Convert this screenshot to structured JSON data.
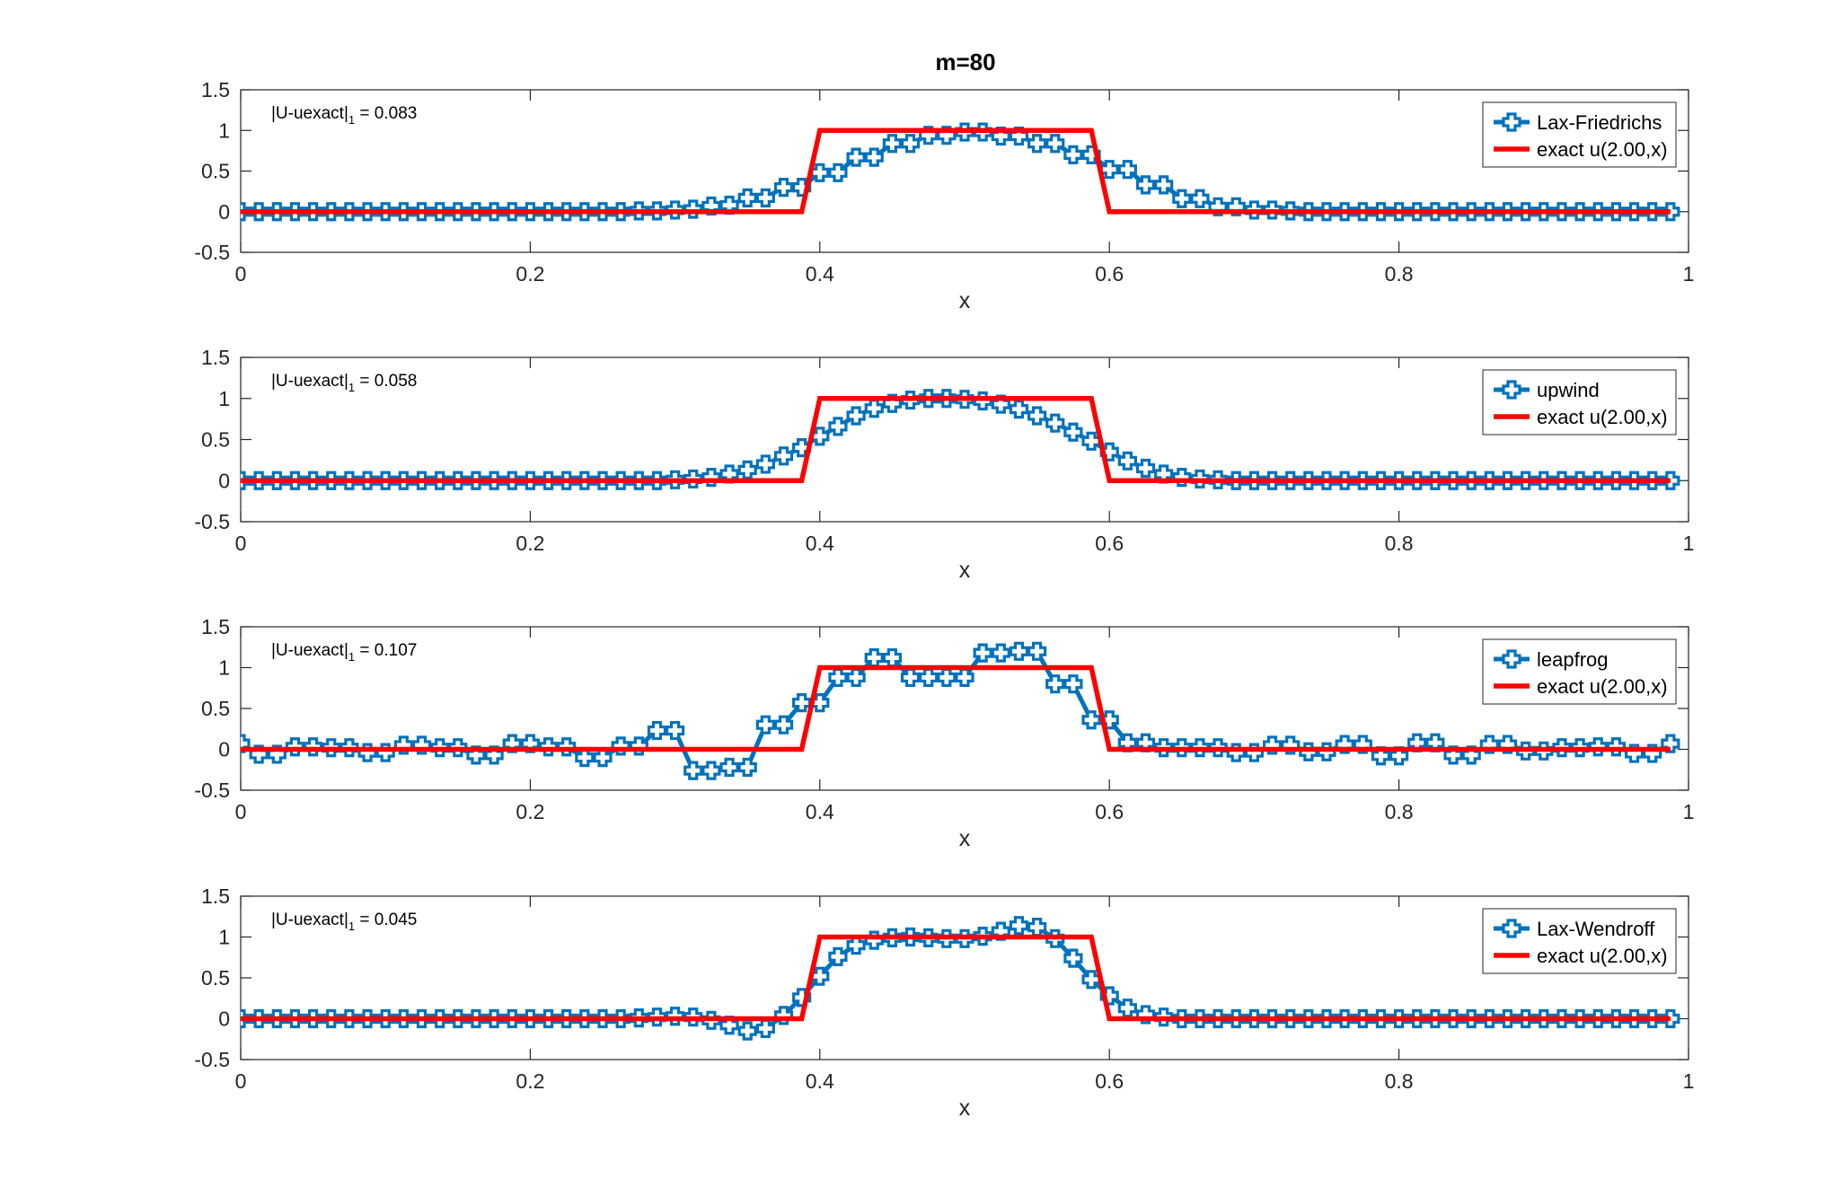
{
  "figure_title": "m=80",
  "colors": {
    "numerical": "#0072BD",
    "exact": "#FF0000",
    "axis": "#262626"
  },
  "chart_data": [
    {
      "type": "line",
      "title": "m=80",
      "xlabel": "x",
      "ylabel": "",
      "xlim": [
        0,
        1
      ],
      "ylim": [
        -0.5,
        1.5
      ],
      "xticks": [
        "0",
        "0.2",
        "0.4",
        "0.6",
        "0.8",
        "1"
      ],
      "yticks": [
        "-0.5",
        "0",
        "0.5",
        "1",
        "1.5"
      ],
      "annotation": {
        "main": "|U-uexact|",
        "sub": "1",
        "value": " = 0.083"
      },
      "legend": "top-right",
      "series": [
        {
          "name": "Lax-Friedrichs",
          "marker": "plus",
          "x": [
            0,
            0.0125,
            0.025,
            0.0375,
            0.05,
            0.0625,
            0.075,
            0.0875,
            0.1,
            0.1125,
            0.125,
            0.1375,
            0.15,
            0.1625,
            0.175,
            0.1875,
            0.2,
            0.2125,
            0.225,
            0.2375,
            0.25,
            0.2625,
            0.275,
            0.2875,
            0.3,
            0.3125,
            0.325,
            0.3375,
            0.35,
            0.3625,
            0.375,
            0.3875,
            0.4,
            0.4125,
            0.425,
            0.4375,
            0.45,
            0.4625,
            0.475,
            0.4875,
            0.5,
            0.5125,
            0.525,
            0.5375,
            0.55,
            0.5625,
            0.575,
            0.5875,
            0.6,
            0.6125,
            0.625,
            0.6375,
            0.65,
            0.6625,
            0.675,
            0.6875,
            0.7,
            0.7125,
            0.725,
            0.7375,
            0.75,
            0.7625,
            0.775,
            0.7875,
            0.8,
            0.8125,
            0.825,
            0.8375,
            0.85,
            0.8625,
            0.875,
            0.8875,
            0.9,
            0.9125,
            0.925,
            0.9375,
            0.95,
            0.9625,
            0.975,
            0.9875
          ],
          "y": [
            0,
            0,
            0,
            0,
            0,
            0,
            0,
            0,
            0,
            0,
            0,
            0,
            0,
            0,
            0,
            0,
            0,
            0,
            0,
            0,
            0,
            0,
            0.01,
            0.01,
            0.02,
            0.03,
            0.07,
            0.08,
            0.17,
            0.17,
            0.3,
            0.3,
            0.48,
            0.48,
            0.67,
            0.67,
            0.84,
            0.84,
            0.94,
            0.94,
            0.98,
            0.98,
            0.93,
            0.93,
            0.84,
            0.84,
            0.7,
            0.7,
            0.52,
            0.52,
            0.33,
            0.33,
            0.16,
            0.16,
            0.06,
            0.06,
            0.02,
            0.02,
            0.01,
            0,
            0,
            0,
            0,
            0,
            0,
            0,
            0,
            0,
            0,
            0,
            0,
            0,
            0,
            0,
            0,
            0,
            0,
            0,
            0,
            0
          ]
        },
        {
          "name": "exact u(2.00,x)",
          "x": [
            0,
            0.3875,
            0.4,
            0.5875,
            0.6,
            0.9875
          ],
          "y": [
            0,
            0,
            1,
            1,
            0,
            0
          ]
        }
      ]
    },
    {
      "type": "line",
      "title": "",
      "xlabel": "x",
      "ylabel": "",
      "xlim": [
        0,
        1
      ],
      "ylim": [
        -0.5,
        1.5
      ],
      "xticks": [
        "0",
        "0.2",
        "0.4",
        "0.6",
        "0.8",
        "1"
      ],
      "yticks": [
        "-0.5",
        "0",
        "0.5",
        "1",
        "1.5"
      ],
      "annotation": {
        "main": "|U-uexact|",
        "sub": "1",
        "value": " = 0.058"
      },
      "legend": "top-right",
      "series": [
        {
          "name": "upwind",
          "marker": "plus",
          "x": [
            0,
            0.0125,
            0.025,
            0.0375,
            0.05,
            0.0625,
            0.075,
            0.0875,
            0.1,
            0.1125,
            0.125,
            0.1375,
            0.15,
            0.1625,
            0.175,
            0.1875,
            0.2,
            0.2125,
            0.225,
            0.2375,
            0.25,
            0.2625,
            0.275,
            0.2875,
            0.3,
            0.3125,
            0.325,
            0.3375,
            0.35,
            0.3625,
            0.375,
            0.3875,
            0.4,
            0.4125,
            0.425,
            0.4375,
            0.45,
            0.4625,
            0.475,
            0.4875,
            0.5,
            0.5125,
            0.525,
            0.5375,
            0.55,
            0.5625,
            0.575,
            0.5875,
            0.6,
            0.6125,
            0.625,
            0.6375,
            0.65,
            0.6625,
            0.675,
            0.6875,
            0.7,
            0.7125,
            0.725,
            0.7375,
            0.75,
            0.7625,
            0.775,
            0.7875,
            0.8,
            0.8125,
            0.825,
            0.8375,
            0.85,
            0.8625,
            0.875,
            0.8875,
            0.9,
            0.9125,
            0.925,
            0.9375,
            0.95,
            0.9625,
            0.975,
            0.9875
          ],
          "y": [
            0,
            0,
            0,
            0,
            0,
            0,
            0,
            0,
            0,
            0,
            0,
            0,
            0,
            0,
            0,
            0,
            0,
            0,
            0,
            0,
            0,
            0,
            0,
            0,
            0.01,
            0.02,
            0.04,
            0.08,
            0.13,
            0.2,
            0.3,
            0.4,
            0.54,
            0.66,
            0.79,
            0.88,
            0.94,
            0.98,
            1,
            1,
            0.99,
            0.97,
            0.93,
            0.87,
            0.79,
            0.7,
            0.59,
            0.48,
            0.35,
            0.24,
            0.15,
            0.08,
            0.04,
            0.02,
            0.01,
            0,
            0,
            0,
            0,
            0,
            0,
            0,
            0,
            0,
            0,
            0,
            0,
            0,
            0,
            0,
            0,
            0,
            0,
            0,
            0,
            0,
            0,
            0,
            0,
            0
          ]
        },
        {
          "name": "exact u(2.00,x)",
          "x": [
            0,
            0.3875,
            0.4,
            0.5875,
            0.6,
            0.9875
          ],
          "y": [
            0,
            0,
            1,
            1,
            0,
            0
          ]
        }
      ]
    },
    {
      "type": "line",
      "title": "",
      "xlabel": "x",
      "ylabel": "",
      "xlim": [
        0,
        1
      ],
      "ylim": [
        -0.5,
        1.5
      ],
      "xticks": [
        "0",
        "0.2",
        "0.4",
        "0.6",
        "0.8",
        "1"
      ],
      "yticks": [
        "-0.5",
        "0",
        "0.5",
        "1",
        "1.5"
      ],
      "annotation": {
        "main": "|U-uexact|",
        "sub": "1",
        "value": " = 0.107"
      },
      "legend": "top-right",
      "series": [
        {
          "name": "leapfrog",
          "marker": "plus",
          "x": [
            0,
            0.0125,
            0.025,
            0.0375,
            0.05,
            0.0625,
            0.075,
            0.0875,
            0.1,
            0.1125,
            0.125,
            0.1375,
            0.15,
            0.1625,
            0.175,
            0.1875,
            0.2,
            0.2125,
            0.225,
            0.2375,
            0.25,
            0.2625,
            0.275,
            0.2875,
            0.3,
            0.3125,
            0.325,
            0.3375,
            0.35,
            0.3625,
            0.375,
            0.3875,
            0.4,
            0.4125,
            0.425,
            0.4375,
            0.45,
            0.4625,
            0.475,
            0.4875,
            0.5,
            0.5125,
            0.525,
            0.5375,
            0.55,
            0.5625,
            0.575,
            0.5875,
            0.6,
            0.6125,
            0.625,
            0.6375,
            0.65,
            0.6625,
            0.675,
            0.6875,
            0.7,
            0.7125,
            0.725,
            0.7375,
            0.75,
            0.7625,
            0.775,
            0.7875,
            0.8,
            0.8125,
            0.825,
            0.8375,
            0.85,
            0.8625,
            0.875,
            0.8875,
            0.9,
            0.9125,
            0.925,
            0.9375,
            0.95,
            0.9625,
            0.975,
            0.9875
          ],
          "y": [
            0.07,
            -0.06,
            -0.06,
            0.03,
            0.03,
            0.02,
            0.02,
            -0.04,
            -0.04,
            0.05,
            0.05,
            0.02,
            0.02,
            -0.07,
            -0.07,
            0.07,
            0.07,
            0.03,
            0.03,
            -0.1,
            -0.1,
            0.04,
            0.04,
            0.23,
            0.23,
            -0.26,
            -0.26,
            -0.22,
            -0.22,
            0.3,
            0.3,
            0.57,
            0.57,
            0.88,
            0.88,
            1.12,
            1.12,
            0.88,
            0.88,
            0.88,
            0.88,
            1.18,
            1.18,
            1.2,
            1.2,
            0.8,
            0.8,
            0.36,
            0.36,
            0.08,
            0.08,
            0.02,
            0.02,
            0.02,
            0.02,
            -0.04,
            -0.04,
            0.05,
            0.05,
            -0.03,
            -0.03,
            0.06,
            0.06,
            -0.08,
            -0.08,
            0.08,
            0.08,
            -0.07,
            -0.07,
            0.06,
            0.06,
            -0.02,
            -0.02,
            0.02,
            0.02,
            0.03,
            0.03,
            -0.05,
            -0.05,
            0.07
          ]
        },
        {
          "name": "exact u(2.00,x)",
          "x": [
            0,
            0.3875,
            0.4,
            0.5875,
            0.6,
            0.9875
          ],
          "y": [
            0,
            0,
            1,
            1,
            0,
            0
          ]
        }
      ]
    },
    {
      "type": "line",
      "title": "",
      "xlabel": "x",
      "ylabel": "",
      "xlim": [
        0,
        1
      ],
      "ylim": [
        -0.5,
        1.5
      ],
      "xticks": [
        "0",
        "0.2",
        "0.4",
        "0.6",
        "0.8",
        "1"
      ],
      "yticks": [
        "-0.5",
        "0",
        "0.5",
        "1",
        "1.5"
      ],
      "annotation": {
        "main": "|U-uexact|",
        "sub": "1",
        "value": " = 0.045"
      },
      "legend": "top-right",
      "series": [
        {
          "name": "Lax-Wendroff",
          "marker": "plus",
          "x": [
            0,
            0.0125,
            0.025,
            0.0375,
            0.05,
            0.0625,
            0.075,
            0.0875,
            0.1,
            0.1125,
            0.125,
            0.1375,
            0.15,
            0.1625,
            0.175,
            0.1875,
            0.2,
            0.2125,
            0.225,
            0.2375,
            0.25,
            0.2625,
            0.275,
            0.2875,
            0.3,
            0.3125,
            0.325,
            0.3375,
            0.35,
            0.3625,
            0.375,
            0.3875,
            0.4,
            0.4125,
            0.425,
            0.4375,
            0.45,
            0.4625,
            0.475,
            0.4875,
            0.5,
            0.5125,
            0.525,
            0.5375,
            0.55,
            0.5625,
            0.575,
            0.5875,
            0.6,
            0.6125,
            0.625,
            0.6375,
            0.65,
            0.6625,
            0.675,
            0.6875,
            0.7,
            0.7125,
            0.725,
            0.7375,
            0.75,
            0.7625,
            0.775,
            0.7875,
            0.8,
            0.8125,
            0.825,
            0.8375,
            0.85,
            0.8625,
            0.875,
            0.8875,
            0.9,
            0.9125,
            0.925,
            0.9375,
            0.95,
            0.9625,
            0.975,
            0.9875
          ],
          "y": [
            0,
            0,
            0,
            0,
            0,
            0,
            0,
            0,
            0,
            0,
            0,
            0,
            0,
            0,
            0,
            0,
            0,
            0,
            0,
            0,
            0,
            0,
            0.01,
            0.02,
            0.03,
            0.02,
            -0.02,
            -0.08,
            -0.15,
            -0.12,
            0.04,
            0.26,
            0.52,
            0.76,
            0.9,
            0.96,
            0.99,
            1,
            0.99,
            0.98,
            0.98,
            1.01,
            1.07,
            1.14,
            1.12,
            0.98,
            0.74,
            0.48,
            0.28,
            0.13,
            0.05,
            0.02,
            0,
            0,
            0,
            0,
            0,
            0,
            0,
            0,
            0,
            0,
            0,
            0,
            0,
            0,
            0,
            0,
            0,
            0,
            0,
            0,
            0,
            0,
            0,
            0,
            0,
            0,
            0,
            0
          ]
        },
        {
          "name": "exact u(2.00,x)",
          "x": [
            0,
            0.3875,
            0.4,
            0.5875,
            0.6,
            0.9875
          ],
          "y": [
            0,
            0,
            1,
            1,
            0,
            0
          ]
        }
      ]
    }
  ]
}
